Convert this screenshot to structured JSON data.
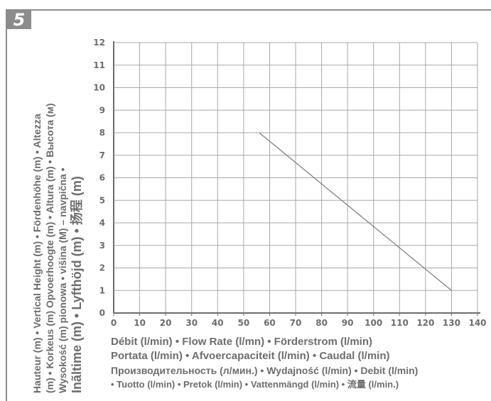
{
  "badge": "5",
  "ylabel_lines": [
    "Hauteur (m) • Vertical Height (m) • Fördenhöhe (m) • Altezza",
    "(m) • Korkeus (m) Opvoerhoogte (m) • Altura (m) • Высота (м)",
    "Wysokość (m) pionowa • višina (M) – navpična •",
    "Inãltime (m)  • Lyfthöjd (m) • 扬程 (m)"
  ],
  "xlabel_lines": [
    "Débit (l/min) • Flow Rate (l/mn) • Förderstrom (l/min)",
    "Portata (l/min) • Afvoercapaciteit (l/min) • Caudal (l/min)",
    "Производительность (л/мин.) • Wydajność (l/min)  • Debit (l/min)",
    "• Tuotto (l/min) • Pretok (l/min) • Vattenmängd (l/min)  • 流量 (l/min.)"
  ],
  "chart_data": {
    "type": "line",
    "x_ticks": [
      "0",
      "10",
      "20",
      "30",
      "40",
      "50",
      "60",
      "70",
      "80",
      "90",
      "100",
      "110",
      "120",
      "130",
      "140"
    ],
    "y_ticks": [
      "0",
      "1",
      "2",
      "3",
      "4",
      "5",
      "6",
      "7",
      "8",
      "9",
      "10",
      "11",
      "12"
    ],
    "xlim": [
      0,
      140
    ],
    "ylim": [
      0,
      12
    ],
    "grid": true,
    "series": [
      {
        "x": [
          56,
          130
        ],
        "y": [
          8,
          1
        ]
      }
    ],
    "colors": {
      "axis": "#6d6d6d",
      "grid": "#a8a8a8",
      "line": "#7a7a7a"
    }
  }
}
